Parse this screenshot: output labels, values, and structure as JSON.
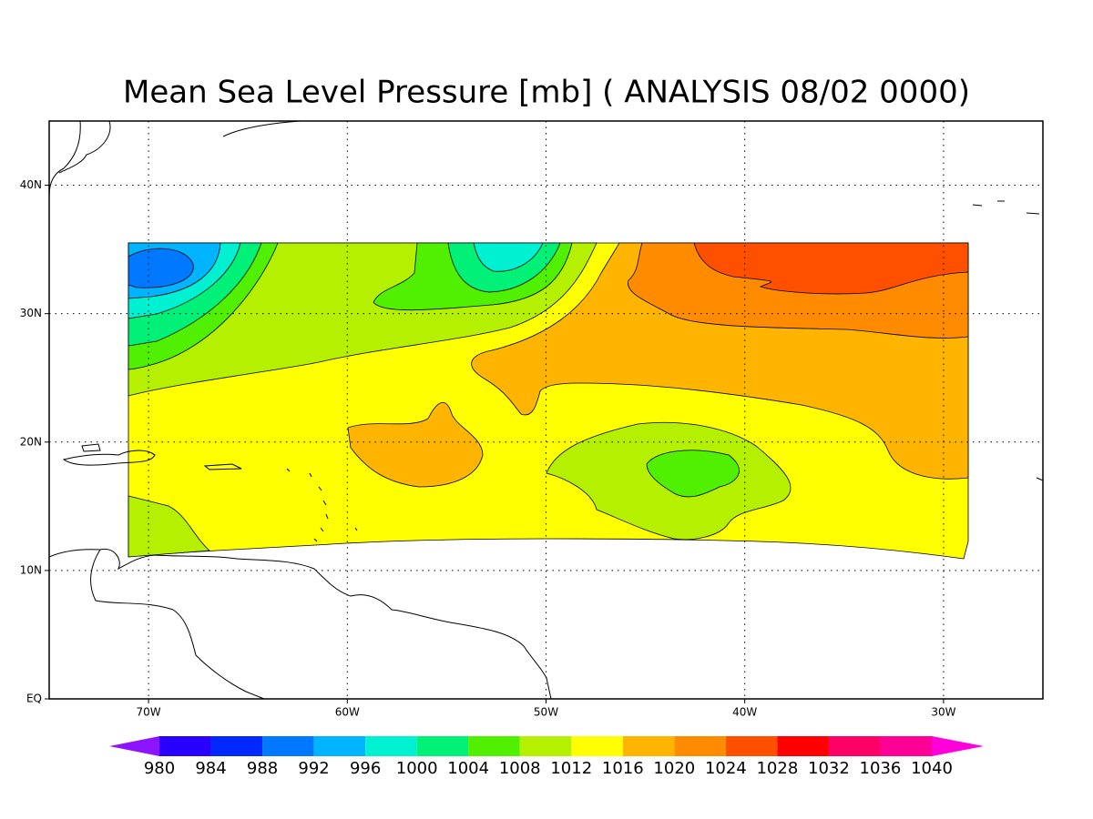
{
  "title": "Mean Sea Level Pressure [mb] ( ANALYSIS 08/02 0000)",
  "map": {
    "xlim": [
      -75,
      -25
    ],
    "ylim": [
      0,
      45
    ],
    "xticks": [
      {
        "value": -70,
        "label": "70W"
      },
      {
        "value": -60,
        "label": "60W"
      },
      {
        "value": -50,
        "label": "50W"
      },
      {
        "value": -40,
        "label": "40W"
      },
      {
        "value": -30,
        "label": "30W"
      }
    ],
    "yticks": [
      {
        "value": 0,
        "label": "EQ"
      },
      {
        "value": 10,
        "label": "10N"
      },
      {
        "value": 20,
        "label": "20N"
      },
      {
        "value": 30,
        "label": "30N"
      },
      {
        "value": 40,
        "label": "40N"
      }
    ],
    "grid": true
  },
  "colorbar": {
    "levels": [
      980,
      984,
      988,
      992,
      996,
      1000,
      1004,
      1008,
      1012,
      1016,
      1020,
      1024,
      1028,
      1032,
      1036,
      1040
    ],
    "colors": [
      "#8c14ff",
      "#2800ff",
      "#0028ff",
      "#0078ff",
      "#00b4ff",
      "#00f0d2",
      "#00f078",
      "#50f000",
      "#b4f000",
      "#ffff00",
      "#ffb400",
      "#ff8c00",
      "#ff5000",
      "#ff0000",
      "#ff0064",
      "#ff0096",
      "#ff00dc"
    ]
  }
}
